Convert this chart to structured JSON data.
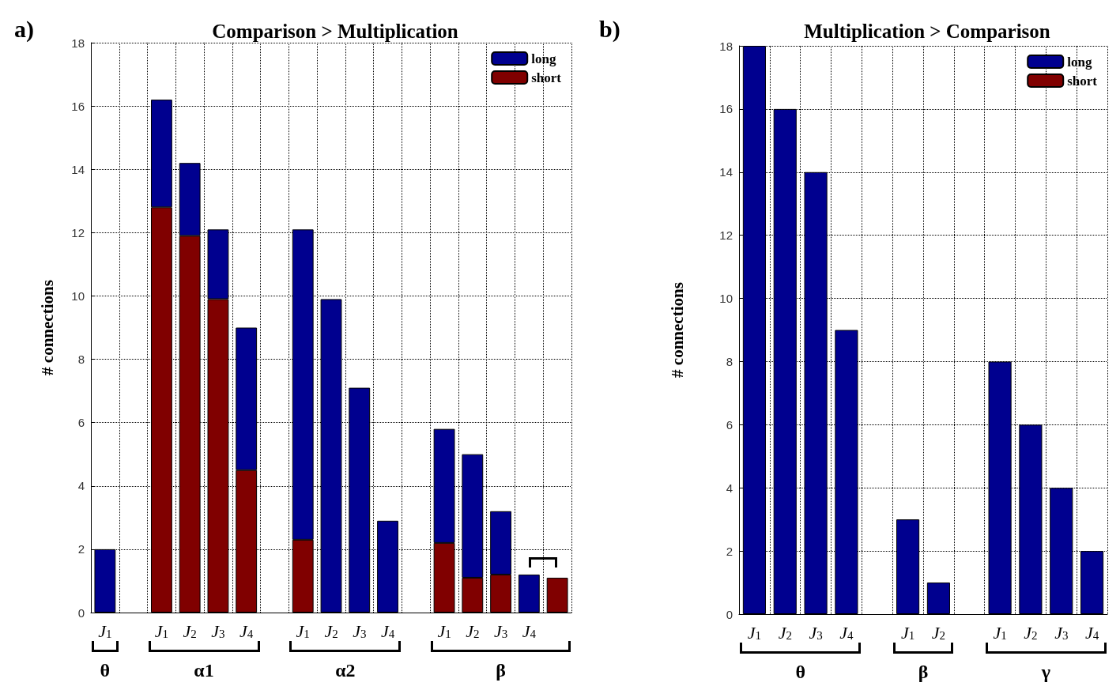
{
  "chart_data": [
    {
      "type": "bar",
      "title": "Comparison > Multiplication",
      "ylabel": "# connections",
      "annotations": [
        "a)",
        "θ",
        "α1",
        "α2",
        "β"
      ],
      "categories": [
        "J$_{1}$",
        null,
        "J$_{1}$",
        "J$_{2}$",
        "J$_{3}$",
        "J$_{4}$",
        null,
        "J$_{1}$",
        "J$_{2}$",
        "J$_{3}$",
        "J$_{4}$",
        null,
        "J$_{1}$",
        "J$_{2}$",
        "J$_{3}$",
        "J$_{4}$",
        null
      ],
      "series": [
        {
          "name": "short",
          "color": "#800000",
          "values": [
            null,
            null,
            12.8,
            11.9,
            9.9,
            4.5,
            null,
            2.3,
            null,
            null,
            null,
            null,
            2.2,
            1.1,
            1.2,
            null,
            1.1
          ]
        },
        {
          "name": "long",
          "color": "#00008f",
          "values": [
            2,
            null,
            3.4,
            2.3,
            2.2,
            4.5,
            null,
            9.8,
            9.9,
            7.1,
            2.9,
            null,
            3.6,
            3.9,
            2.0,
            1.2,
            null
          ]
        }
      ],
      "stacked": true,
      "ylim": [
        0,
        18
      ],
      "yticks": [
        0,
        2,
        4,
        6,
        8,
        10,
        12,
        14,
        16,
        18
      ],
      "grid": true,
      "legend": "top right"
    },
    {
      "type": "bar",
      "title": "Multiplication > Comparison",
      "ylabel": "# connections",
      "annotations": [
        "b)",
        "θ",
        "β",
        "γ"
      ],
      "categories": [
        "J$_{1}$",
        "J$_{2}$",
        "J$_{3}$",
        "J$_{4}$",
        null,
        "J$_{1}$",
        "J$_{2}$",
        null,
        "J$_{1}$",
        "J$_{2}$",
        "J$_{3}$",
        "J$_{4}$"
      ],
      "series": [
        {
          "name": "short",
          "color": "#800000",
          "values": [
            null,
            null,
            null,
            null,
            null,
            null,
            null,
            null,
            null,
            null,
            null,
            null
          ]
        },
        {
          "name": "long",
          "color": "#00008f",
          "values": [
            18,
            16,
            14,
            9,
            null,
            3,
            1,
            null,
            8,
            6,
            4,
            2
          ]
        }
      ],
      "ylim": [
        0,
        18
      ],
      "yticks": [
        0,
        2,
        4,
        6,
        8,
        10,
        12,
        14,
        16,
        18
      ],
      "grid": true,
      "legend": "top right"
    }
  ]
}
